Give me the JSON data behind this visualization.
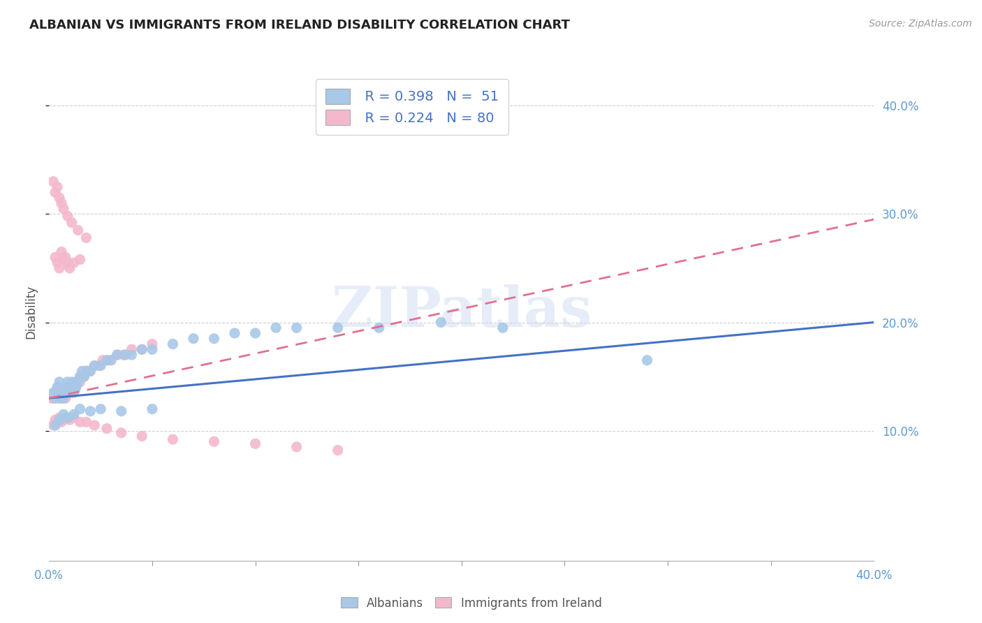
{
  "title": "ALBANIAN VS IMMIGRANTS FROM IRELAND DISABILITY CORRELATION CHART",
  "source": "Source: ZipAtlas.com",
  "ylabel": "Disability",
  "xlim": [
    0.0,
    0.4
  ],
  "ylim": [
    -0.02,
    0.44
  ],
  "albanian_color": "#a8c8e8",
  "ireland_color": "#f4b8cc",
  "albanian_line_color": "#4472c4",
  "ireland_line_color": "#e07090",
  "legend_r1": "R = 0.398",
  "legend_n1": "N =  51",
  "legend_r2": "R = 0.224",
  "legend_n2": "N = 80",
  "background_color": "#ffffff",
  "grid_color": "#bbbbbb",
  "title_color": "#222222",
  "watermark": "ZIPatlas",
  "ytick_positions": [
    0.1,
    0.2,
    0.3,
    0.4
  ],
  "ytick_labels": [
    "10.0%",
    "20.0%",
    "30.0%",
    "40.0%"
  ],
  "albanian_x": [
    0.002,
    0.003,
    0.004,
    0.005,
    0.005,
    0.006,
    0.007,
    0.008,
    0.008,
    0.009,
    0.01,
    0.011,
    0.012,
    0.013,
    0.014,
    0.015,
    0.016,
    0.017,
    0.018,
    0.02,
    0.022,
    0.025,
    0.028,
    0.03,
    0.033,
    0.037,
    0.04,
    0.045,
    0.05,
    0.06,
    0.07,
    0.08,
    0.09,
    0.1,
    0.11,
    0.12,
    0.14,
    0.16,
    0.19,
    0.22,
    0.003,
    0.005,
    0.007,
    0.009,
    0.012,
    0.015,
    0.02,
    0.025,
    0.035,
    0.05,
    0.29
  ],
  "albanian_y": [
    0.135,
    0.13,
    0.14,
    0.13,
    0.145,
    0.135,
    0.13,
    0.14,
    0.135,
    0.145,
    0.14,
    0.145,
    0.135,
    0.14,
    0.145,
    0.15,
    0.155,
    0.15,
    0.155,
    0.155,
    0.16,
    0.16,
    0.165,
    0.165,
    0.17,
    0.17,
    0.17,
    0.175,
    0.175,
    0.18,
    0.185,
    0.185,
    0.19,
    0.19,
    0.195,
    0.195,
    0.195,
    0.195,
    0.2,
    0.195,
    0.105,
    0.11,
    0.115,
    0.112,
    0.115,
    0.12,
    0.118,
    0.12,
    0.118,
    0.12,
    0.165
  ],
  "ireland_x": [
    0.001,
    0.002,
    0.003,
    0.003,
    0.004,
    0.004,
    0.005,
    0.005,
    0.006,
    0.006,
    0.007,
    0.007,
    0.008,
    0.008,
    0.009,
    0.009,
    0.01,
    0.01,
    0.011,
    0.012,
    0.013,
    0.013,
    0.014,
    0.015,
    0.015,
    0.016,
    0.017,
    0.018,
    0.019,
    0.02,
    0.022,
    0.024,
    0.026,
    0.028,
    0.03,
    0.033,
    0.036,
    0.04,
    0.045,
    0.05,
    0.002,
    0.003,
    0.004,
    0.005,
    0.006,
    0.007,
    0.008,
    0.01,
    0.012,
    0.015,
    0.018,
    0.022,
    0.028,
    0.035,
    0.045,
    0.06,
    0.08,
    0.1,
    0.12,
    0.14,
    0.003,
    0.004,
    0.005,
    0.006,
    0.007,
    0.008,
    0.009,
    0.01,
    0.012,
    0.015,
    0.002,
    0.003,
    0.004,
    0.005,
    0.006,
    0.007,
    0.009,
    0.011,
    0.014,
    0.018
  ],
  "ireland_y": [
    0.13,
    0.13,
    0.135,
    0.13,
    0.135,
    0.14,
    0.13,
    0.135,
    0.13,
    0.135,
    0.13,
    0.135,
    0.135,
    0.13,
    0.135,
    0.14,
    0.135,
    0.14,
    0.14,
    0.14,
    0.145,
    0.14,
    0.145,
    0.145,
    0.15,
    0.15,
    0.15,
    0.155,
    0.155,
    0.155,
    0.16,
    0.16,
    0.165,
    0.165,
    0.165,
    0.17,
    0.17,
    0.175,
    0.175,
    0.18,
    0.105,
    0.11,
    0.108,
    0.112,
    0.108,
    0.11,
    0.112,
    0.11,
    0.112,
    0.108,
    0.108,
    0.105,
    0.102,
    0.098,
    0.095,
    0.092,
    0.09,
    0.088,
    0.085,
    0.082,
    0.26,
    0.255,
    0.25,
    0.265,
    0.258,
    0.26,
    0.255,
    0.25,
    0.255,
    0.258,
    0.33,
    0.32,
    0.325,
    0.315,
    0.31,
    0.305,
    0.298,
    0.292,
    0.285,
    0.278
  ]
}
